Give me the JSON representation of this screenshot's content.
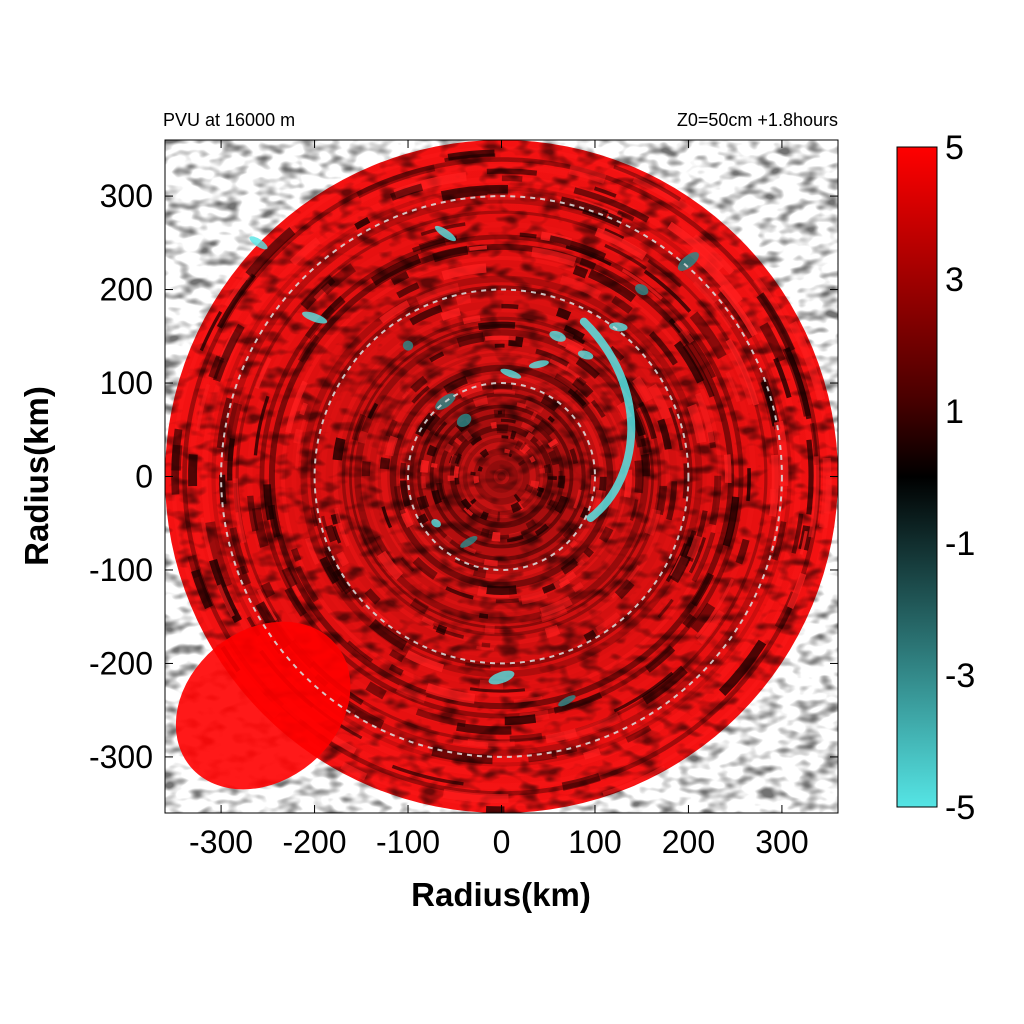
{
  "chart_data": {
    "type": "heatmap",
    "title_left": "PVU at 16000 m",
    "title_right": "Z0=50cm  +1.8hours",
    "xlabel": "Radius(km)",
    "ylabel": "Radius(km)",
    "xlim": [
      -360,
      360
    ],
    "ylim": [
      -360,
      360
    ],
    "x_ticks": [
      -300,
      -200,
      -100,
      0,
      100,
      200,
      300
    ],
    "y_ticks": [
      -300,
      -200,
      -100,
      0,
      100,
      200,
      300
    ],
    "x_tick_labels": [
      "-300",
      "-200",
      "-100",
      "0",
      "100",
      "200",
      "300"
    ],
    "y_tick_labels": [
      "-300",
      "-200",
      "-100",
      "0",
      "100",
      "200",
      "300"
    ],
    "domain_radius": 360,
    "reference_circles": [
      100,
      200,
      300
    ],
    "grid": false,
    "colorbar": {
      "range": [
        -5,
        5
      ],
      "tick_values": [
        5,
        3,
        1,
        -1,
        -3,
        -5
      ],
      "tick_labels": [
        "5",
        "3",
        "1",
        "-1",
        "-3",
        "-5"
      ],
      "colors": [
        "#ff0000",
        "#000000",
        "#55e5e5"
      ]
    },
    "features": [
      {
        "name": "negative-PV band (cyan)",
        "radius_km_range": [
          100,
          200
        ],
        "azimuth_deg_range": [
          -20,
          60
        ]
      },
      {
        "name": "strong positive PV (red)",
        "region": "southwest, r 250-360"
      }
    ]
  }
}
